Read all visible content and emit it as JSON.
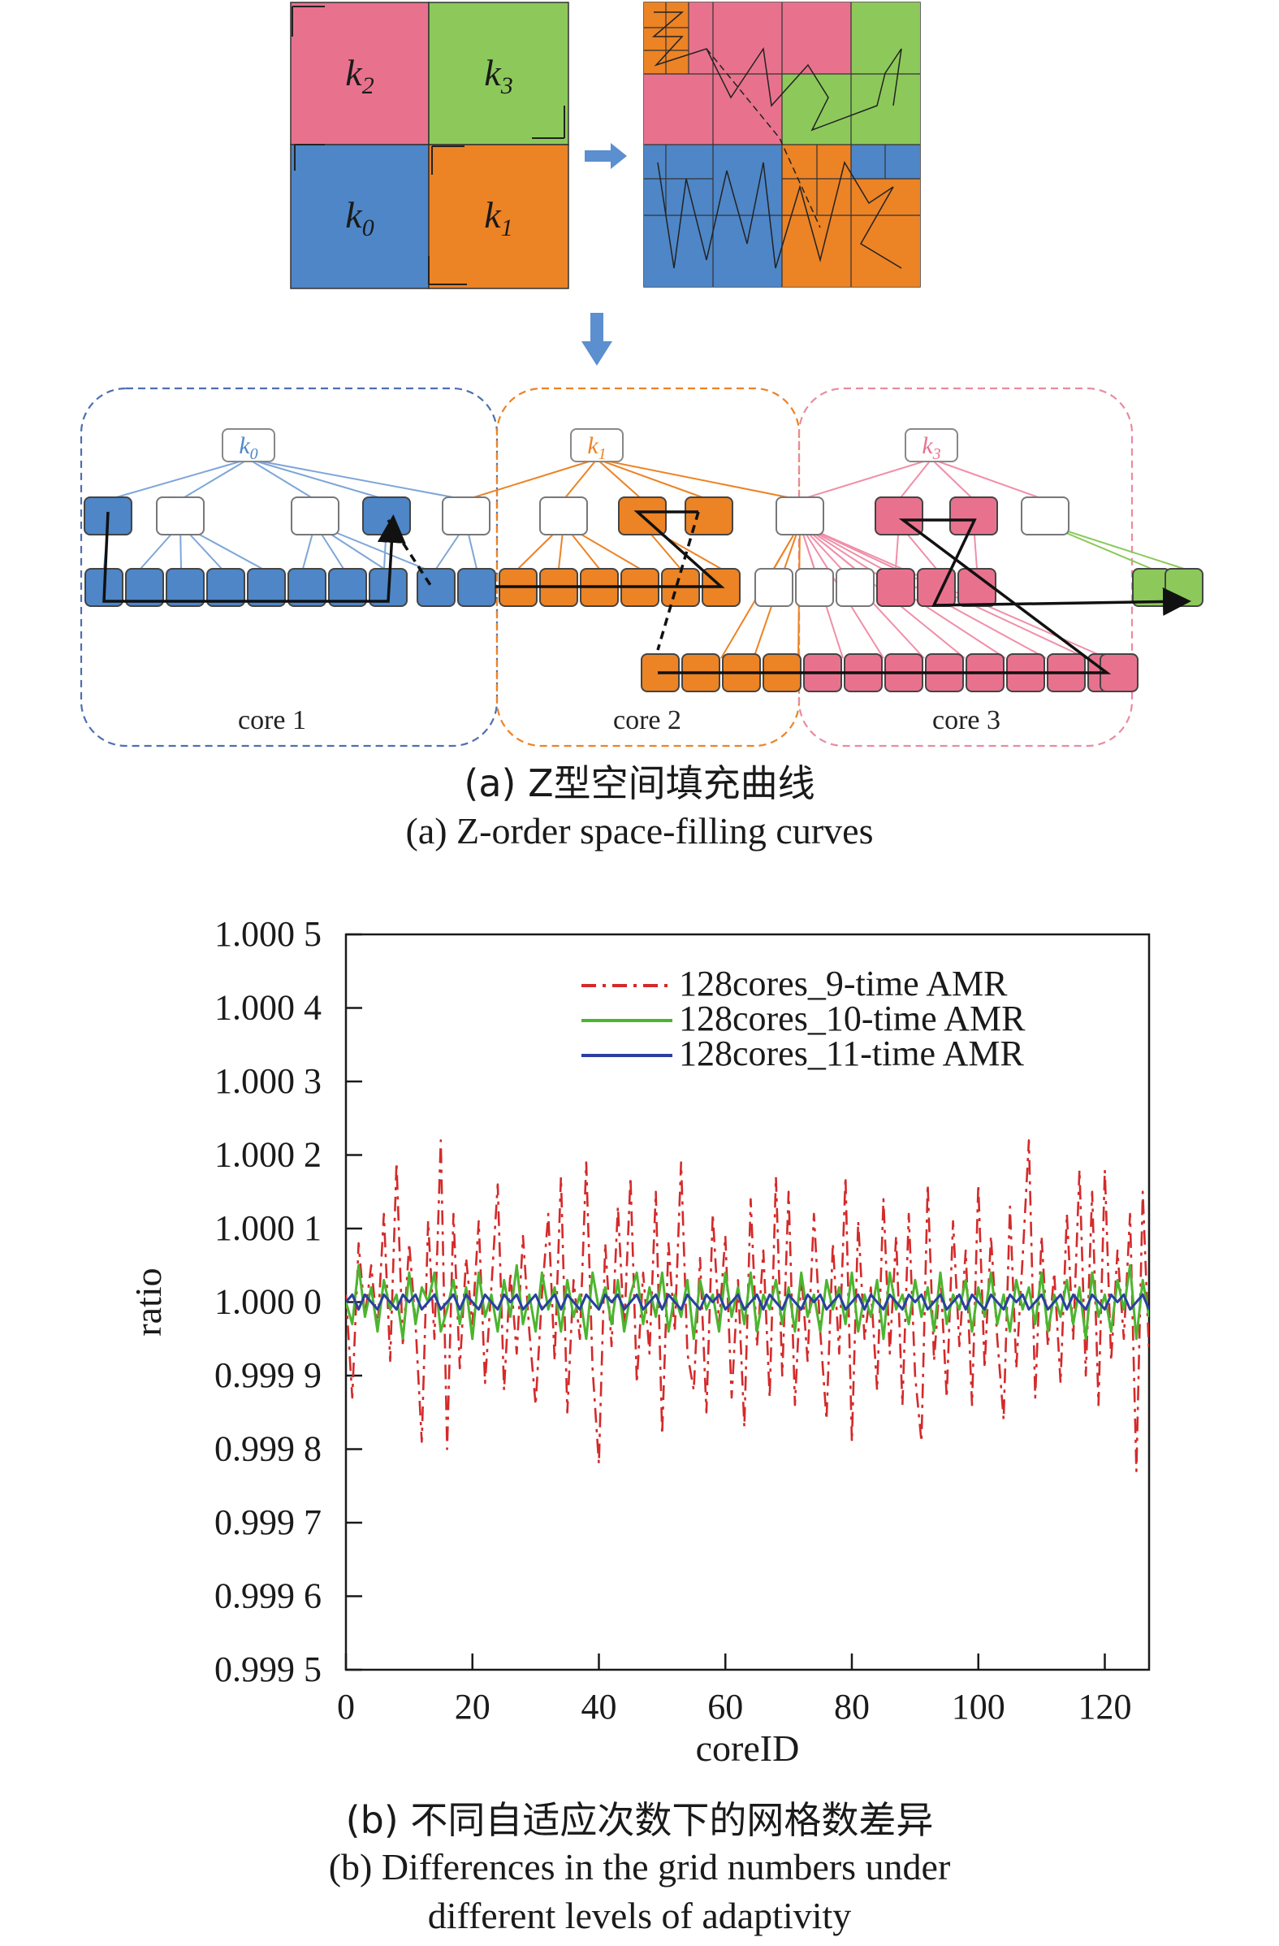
{
  "figure_a": {
    "regions": [
      {
        "base": "k",
        "sub": "2",
        "color": "#e8728d"
      },
      {
        "base": "k",
        "sub": "3",
        "color": "#8cc95a"
      },
      {
        "base": "k",
        "sub": "0",
        "color": "#4e86c7"
      },
      {
        "base": "k",
        "sub": "1",
        "color": "#ec8325"
      }
    ],
    "tree_roots": [
      {
        "base": "k",
        "sub": "0"
      },
      {
        "base": "k",
        "sub": "1"
      },
      {
        "base": "k",
        "sub": "3"
      }
    ],
    "core_labels": [
      "core 1",
      "core 2",
      "core 3"
    ],
    "caption_zh": "(a) Z型空间填充曲线",
    "caption_en": "(a) Z-order space-filling curves"
  },
  "figure_b": {
    "caption_zh": "(b) 不同自适应次数下的网格数差异",
    "caption_en_line1": "(b) Differences in the grid numbers under",
    "caption_en_line2": "different levels of adaptivity"
  },
  "chart_data": {
    "type": "line",
    "xlabel": "coreID",
    "ylabel": "ratio",
    "xlim": [
      0,
      127
    ],
    "ylim": [
      0.9995,
      1.0005
    ],
    "xticks": [
      0,
      20,
      40,
      60,
      80,
      100,
      120
    ],
    "xtick_labels": [
      "0",
      "20",
      "40",
      "60",
      "80",
      "100",
      "120"
    ],
    "yticks": [
      0.9995,
      0.9996,
      0.9997,
      0.9998,
      0.9999,
      1.0,
      1.0001,
      1.0002,
      1.0003,
      1.0004,
      1.0005
    ],
    "ytick_labels": [
      "0.999 5",
      "0.999 6",
      "0.999 7",
      "0.999 8",
      "0.999 9",
      "1.000 0",
      "1.000 1",
      "1.000 2",
      "1.000 3",
      "1.000 4",
      "1.000 5"
    ],
    "legend_position": "top-right",
    "series": [
      {
        "name": "128cores_9-time AMR",
        "color": "#d42a2a",
        "dash": "dashdot",
        "values": [
          1.00001,
          0.99987,
          1.00008,
          0.99998,
          1.00005,
          0.99996,
          1.00012,
          0.99992,
          1.00019,
          0.99994,
          1.00008,
          0.99997,
          0.99981,
          1.00011,
          0.99995,
          1.00022,
          0.9998,
          1.00012,
          0.99991,
          1.00006,
          0.99997,
          1.00011,
          0.99989,
          1.00002,
          1.00016,
          0.99988,
          1.00004,
          0.99993,
          1.00009,
          0.99996,
          0.99986,
          1.00001,
          1.00012,
          0.99992,
          1.00017,
          0.99985,
          1.00003,
          0.99995,
          1.00019,
          0.99991,
          0.99978,
          1.00008,
          0.99994,
          1.00013,
          0.99996,
          1.00017,
          0.99989,
          1.00004,
          0.99993,
          1.00015,
          0.99982,
          1.00008,
          0.99996,
          1.00019,
          0.99993,
          0.99988,
          1.00006,
          0.99985,
          1.00012,
          0.99997,
          1.00009,
          0.99987,
          1.00003,
          0.99983,
          1.00014,
          0.99994,
          1.00007,
          0.99987,
          1.00017,
          0.9999,
          1.00015,
          0.99986,
          1.00004,
          0.99992,
          1.00012,
          0.99996,
          0.99984,
          1.00008,
          0.99993,
          1.00017,
          0.99981,
          1.00011,
          0.99995,
          1.00002,
          0.99988,
          1.00014,
          0.99993,
          1.00009,
          0.99986,
          1.00012,
          0.9999,
          0.99981,
          1.00016,
          0.99992,
          1.00004,
          0.99987,
          1.00011,
          0.99994,
          1.00007,
          0.99986,
          1.00016,
          0.99991,
          1.00009,
          0.99995,
          0.99984,
          1.00013,
          0.99991,
          1.00006,
          1.00022,
          0.99987,
          1.00009,
          0.99994,
          1.00004,
          0.99989,
          1.00012,
          0.99995,
          1.00018,
          0.9999,
          1.00015,
          0.99986,
          1.00018,
          0.99992,
          1.00007,
          0.99995,
          1.00012,
          0.99977,
          1.00015,
          0.99993
        ]
      },
      {
        "name": "128cores_10-time AMR",
        "color": "#4cb52f",
        "dash": "solid",
        "values": [
          1.0,
          0.99997,
          1.00005,
          0.99998,
          1.00002,
          0.99996,
          1.00003,
          0.99999,
          1.00001,
          0.99995,
          1.00004,
          0.99997,
          1.00002,
          1.0,
          1.00004,
          0.99996,
          0.99999,
          1.00003,
          0.99997,
          1.00002,
          0.99995,
          1.00004,
          0.99998,
          1.00001,
          0.99996,
          1.00003,
          0.99998,
          1.00005,
          0.99997,
          1.00001,
          0.99996,
          1.00004,
          0.99999,
          1.00002,
          0.99996,
          1.00003,
          0.99998,
          1.00001,
          0.99995,
          1.00004,
          0.99999,
          1.00002,
          0.99997,
          1.00003,
          0.99996,
          1.00001,
          1.00004,
          0.99997,
          1.00002,
          0.99998,
          1.00004,
          0.99996,
          1.00001,
          0.99998,
          1.00003,
          0.99995,
          1.00003,
          0.99999,
          1.00001,
          0.99996,
          1.00004,
          0.99998,
          1.00002,
          0.99997,
          1.00004,
          0.99996,
          1.00001,
          0.99999,
          1.00003,
          0.99997,
          1.00002,
          0.99996,
          1.00004,
          0.99998,
          1.00001,
          0.99996,
          1.00003,
          0.99999,
          1.00002,
          0.99997,
          1.00004,
          0.99996,
          1.00001,
          0.99998,
          1.00003,
          0.99995,
          1.00004,
          0.99999,
          1.00001,
          0.99997,
          1.00003,
          0.99998,
          1.00002,
          0.99996,
          1.00004,
          0.99997,
          1.00001,
          0.99999,
          1.00003,
          0.99996,
          1.00002,
          0.99998,
          1.00004,
          0.99997,
          1.00001,
          0.99996,
          1.00003,
          0.99999,
          1.00002,
          0.99997,
          1.00004,
          0.99996,
          1.00001,
          0.99998,
          1.00003,
          0.99997,
          1.00002,
          0.99995,
          1.00004,
          0.99998,
          1.00001,
          0.99996,
          1.00003,
          0.99999,
          1.00005,
          0.99995,
          1.00003,
          0.99998
        ]
      },
      {
        "name": "128cores_11-time AMR",
        "color": "#2b3fa0",
        "dash": "solid",
        "values": [
          1.0,
          1.00001,
          0.99999,
          1.00001,
          1.0,
          0.99999,
          1.00001,
          1.0,
          0.99999,
          1.00001,
          1.0,
          1.00001,
          0.99999,
          1.0,
          1.00001,
          0.99999,
          1.0,
          1.00001,
          0.99999,
          1.00001,
          1.0,
          0.99999,
          1.00001,
          1.0,
          0.99999,
          1.00001,
          1.0,
          1.00001,
          0.99999,
          1.0,
          1.00001,
          0.99999,
          1.0,
          1.00001,
          0.99999,
          1.00001,
          1.0,
          0.99999,
          1.00001,
          1.0,
          0.99999,
          1.00001,
          1.0,
          1.00001,
          0.99999,
          1.0,
          1.00001,
          0.99999,
          1.0,
          1.00001,
          0.99999,
          1.00001,
          1.0,
          0.99999,
          1.00001,
          1.0,
          0.99999,
          1.00001,
          1.0,
          1.00001,
          0.99999,
          1.0,
          1.00001,
          0.99999,
          1.0,
          1.00001,
          0.99999,
          1.00001,
          1.0,
          0.99999,
          1.00001,
          1.0,
          0.99999,
          1.00001,
          1.0,
          1.00001,
          0.99999,
          1.0,
          1.00001,
          0.99999,
          1.0,
          1.00001,
          0.99999,
          1.00001,
          1.0,
          0.99999,
          1.00001,
          1.0,
          0.99999,
          1.00001,
          1.0,
          1.00001,
          0.99999,
          1.0,
          1.00001,
          0.99999,
          1.0,
          1.00001,
          0.99999,
          1.00001,
          1.0,
          0.99999,
          1.00001,
          1.0,
          0.99999,
          1.00001,
          1.0,
          1.00001,
          0.99999,
          1.0,
          1.00001,
          0.99999,
          1.0,
          1.00001,
          0.99999,
          1.00001,
          1.0,
          0.99999,
          1.00001,
          1.0,
          0.99999,
          1.00001,
          1.0,
          1.00001,
          0.99999,
          1.0,
          1.00001,
          0.99999
        ]
      }
    ]
  }
}
